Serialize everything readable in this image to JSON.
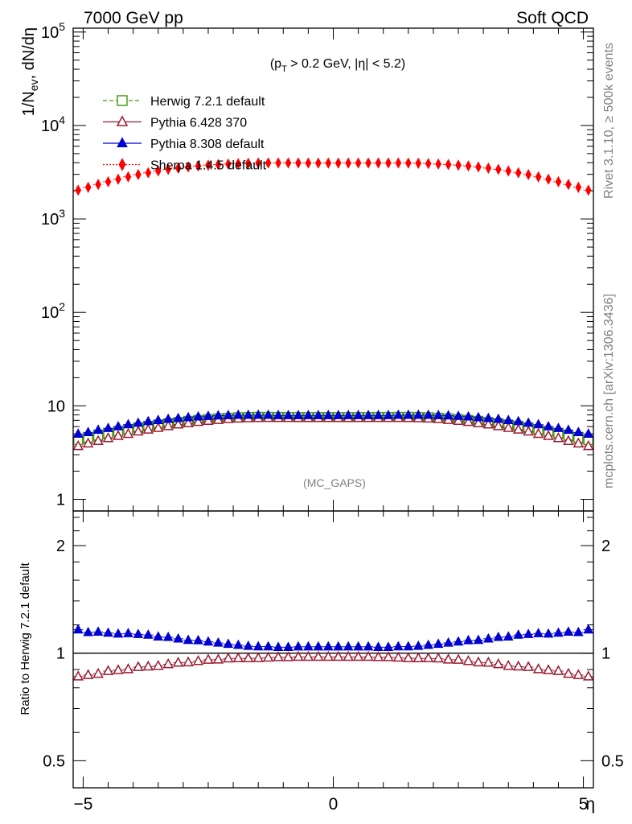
{
  "header": {
    "left_title": "7000 GeV pp",
    "right_title": "Soft QCD"
  },
  "side_labels": {
    "rivet": "Rivet 3.1.10, ≥ 500k events",
    "mcplots": "mcplots.cern.ch [arXiv:1306.3436]"
  },
  "chart_data": [
    {
      "type": "scatter",
      "panel": "main",
      "title": "(p_T > 0.2 GeV, |η| < 5.2)",
      "cut_label": {
        "pre": "(p",
        "sub": "T",
        "post": " > 0.2 GeV, |η| < 5.2)"
      },
      "analysis_label": "(MC_GAPS)",
      "ylabel": {
        "pre": "1/N",
        "sub": "ev",
        "post": ", dN/dη"
      },
      "yscale": "log",
      "ylim": [
        0.75,
        110000
      ],
      "xlim": [
        -5.2,
        5.2
      ],
      "y_ticks": [
        {
          "value": 1,
          "label": "1"
        },
        {
          "value": 10,
          "label": "10"
        },
        {
          "value": 100,
          "label": "10",
          "exp": "2"
        },
        {
          "value": 1000,
          "label": "10",
          "exp": "3"
        },
        {
          "value": 10000,
          "label": "10",
          "exp": "4"
        },
        {
          "value": 100000,
          "label": "10",
          "exp": "5"
        }
      ],
      "legend_position": "top-left",
      "x": [
        -5.1,
        -4.9,
        -4.7,
        -4.5,
        -4.3,
        -4.1,
        -3.9,
        -3.7,
        -3.5,
        -3.3,
        -3.1,
        -2.9,
        -2.7,
        -2.5,
        -2.3,
        -2.1,
        -1.9,
        -1.7,
        -1.5,
        -1.3,
        -1.1,
        -0.9,
        -0.7,
        -0.5,
        -0.3,
        -0.1,
        0.1,
        0.3,
        0.5,
        0.7,
        0.9,
        1.1,
        1.3,
        1.5,
        1.7,
        1.9,
        2.1,
        2.3,
        2.5,
        2.7,
        2.9,
        3.1,
        3.3,
        3.5,
        3.7,
        3.9,
        4.1,
        4.3,
        4.5,
        4.7,
        4.9,
        5.1
      ],
      "series": [
        {
          "name": "Herwig 7.2.1 default",
          "color": "#4b9b12",
          "marker": "open-square",
          "line": "dashed",
          "values": [
            4.3,
            4.55,
            4.8,
            5.05,
            5.3,
            5.55,
            5.8,
            6.05,
            6.3,
            6.5,
            6.7,
            6.9,
            7.05,
            7.2,
            7.35,
            7.45,
            7.55,
            7.6,
            7.62,
            7.62,
            7.6,
            7.6,
            7.58,
            7.58,
            7.58,
            7.58,
            7.58,
            7.58,
            7.58,
            7.58,
            7.6,
            7.6,
            7.62,
            7.62,
            7.6,
            7.55,
            7.45,
            7.35,
            7.2,
            7.05,
            6.9,
            6.7,
            6.5,
            6.3,
            6.05,
            5.8,
            5.55,
            5.3,
            5.05,
            4.8,
            4.55,
            4.3
          ]
        },
        {
          "name": "Pythia 6.428 370",
          "color": "#9b1b30",
          "marker": "open-triangle",
          "line": "solid",
          "values": [
            3.7,
            3.95,
            4.2,
            4.5,
            4.75,
            5.0,
            5.3,
            5.55,
            5.8,
            6.05,
            6.3,
            6.5,
            6.7,
            6.9,
            7.05,
            7.2,
            7.3,
            7.35,
            7.38,
            7.4,
            7.4,
            7.4,
            7.4,
            7.4,
            7.4,
            7.4,
            7.4,
            7.4,
            7.4,
            7.4,
            7.4,
            7.4,
            7.4,
            7.38,
            7.35,
            7.3,
            7.2,
            7.05,
            6.9,
            6.7,
            6.5,
            6.3,
            6.05,
            5.8,
            5.55,
            5.3,
            5.0,
            4.75,
            4.5,
            4.2,
            3.95,
            3.7
          ]
        },
        {
          "name": "Pythia 8.308 default",
          "color": "#0000d0",
          "marker": "filled-triangle",
          "line": "solid",
          "values": [
            5.0,
            5.2,
            5.5,
            5.75,
            6.0,
            6.3,
            6.55,
            6.8,
            7.0,
            7.2,
            7.35,
            7.5,
            7.65,
            7.75,
            7.85,
            7.9,
            7.95,
            7.95,
            7.95,
            7.95,
            7.9,
            7.9,
            7.9,
            7.9,
            7.9,
            7.9,
            7.9,
            7.9,
            7.9,
            7.9,
            7.9,
            7.9,
            7.95,
            7.95,
            7.95,
            7.95,
            7.9,
            7.85,
            7.75,
            7.65,
            7.5,
            7.35,
            7.2,
            7.0,
            6.8,
            6.55,
            6.3,
            6.0,
            5.75,
            5.5,
            5.2,
            5.0
          ]
        },
        {
          "name": "Sherpa 1.4.5 default",
          "color": "#ff0000",
          "marker": "filled-diamond",
          "line": "dotted",
          "values": [
            2030,
            2180,
            2340,
            2500,
            2660,
            2820,
            2980,
            3120,
            3260,
            3390,
            3500,
            3600,
            3690,
            3760,
            3820,
            3870,
            3910,
            3940,
            3960,
            3970,
            3970,
            3970,
            3970,
            3965,
            3960,
            3960,
            3960,
            3960,
            3965,
            3970,
            3970,
            3970,
            3970,
            3960,
            3940,
            3910,
            3870,
            3820,
            3760,
            3690,
            3600,
            3500,
            3390,
            3260,
            3120,
            2980,
            2820,
            2660,
            2500,
            2340,
            2180,
            2030
          ]
        }
      ]
    },
    {
      "type": "scatter",
      "panel": "ratio",
      "ylabel": "Ratio to Herwig 7.2.1 default",
      "xlabel": "η",
      "yscale": "log",
      "ylim": [
        0.42,
        2.5
      ],
      "xlim": [
        -5.2,
        5.2
      ],
      "y_ticks": [
        {
          "value": 0.5,
          "label": "0.5"
        },
        {
          "value": 1,
          "label": "1"
        },
        {
          "value": 2,
          "label": "2"
        }
      ],
      "x_ticks": [
        {
          "value": -5,
          "label": "−5"
        },
        {
          "value": 0,
          "label": "0"
        },
        {
          "value": 5,
          "label": "5"
        }
      ],
      "series": [
        {
          "name": "Pythia 6.428 370",
          "color": "#9b1b30",
          "marker": "open-triangle",
          "values": [
            0.86,
            0.868,
            0.875,
            0.891,
            0.896,
            0.901,
            0.914,
            0.917,
            0.921,
            0.931,
            0.94,
            0.942,
            0.95,
            0.958,
            0.959,
            0.966,
            0.967,
            0.967,
            0.968,
            0.971,
            0.974,
            0.974,
            0.976,
            0.976,
            0.976,
            0.976,
            0.976,
            0.976,
            0.976,
            0.976,
            0.974,
            0.974,
            0.971,
            0.968,
            0.967,
            0.967,
            0.966,
            0.959,
            0.958,
            0.95,
            0.942,
            0.94,
            0.931,
            0.921,
            0.917,
            0.914,
            0.901,
            0.896,
            0.891,
            0.875,
            0.868,
            0.86
          ]
        },
        {
          "name": "Pythia 8.308 default",
          "color": "#0000d0",
          "marker": "filled-triangle",
          "values": [
            1.163,
            1.143,
            1.146,
            1.139,
            1.132,
            1.135,
            1.129,
            1.124,
            1.111,
            1.108,
            1.097,
            1.087,
            1.085,
            1.076,
            1.068,
            1.06,
            1.053,
            1.046,
            1.043,
            1.043,
            1.039,
            1.039,
            1.042,
            1.042,
            1.042,
            1.042,
            1.042,
            1.042,
            1.042,
            1.042,
            1.039,
            1.039,
            1.043,
            1.043,
            1.046,
            1.053,
            1.06,
            1.068,
            1.076,
            1.085,
            1.087,
            1.097,
            1.108,
            1.111,
            1.124,
            1.129,
            1.135,
            1.132,
            1.139,
            1.146,
            1.143,
            1.163
          ]
        }
      ]
    }
  ]
}
